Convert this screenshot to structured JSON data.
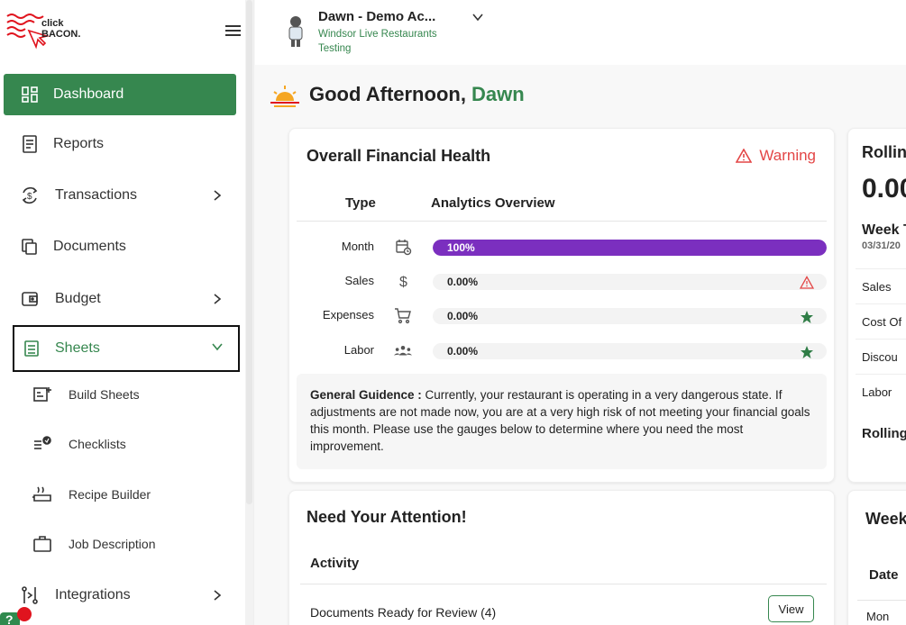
{
  "brand": {
    "logo_text_1": "click",
    "logo_text_2": "BACON."
  },
  "sidebar": {
    "items": [
      {
        "label": "Dashboard",
        "icon": "dashboard-icon"
      },
      {
        "label": "Reports",
        "icon": "reports-icon"
      },
      {
        "label": "Transactions",
        "icon": "transactions-icon"
      },
      {
        "label": "Documents",
        "icon": "documents-icon"
      },
      {
        "label": "Budget",
        "icon": "budget-icon"
      },
      {
        "label": "Sheets",
        "icon": "sheets-icon"
      },
      {
        "label": "Integrations",
        "icon": "integrations-icon"
      }
    ],
    "sub_items": [
      {
        "label": "Build Sheets",
        "icon": "build-sheets-icon"
      },
      {
        "label": "Checklists",
        "icon": "checklists-icon"
      },
      {
        "label": "Recipe Builder",
        "icon": "recipe-builder-icon"
      },
      {
        "label": "Job Description",
        "icon": "job-description-icon"
      }
    ],
    "help_badge": "?"
  },
  "account": {
    "name": "Dawn - Demo Ac...",
    "subtitle": "Windsor Live Restaurants Testing"
  },
  "greeting": {
    "prefix": "Good Afternoon, ",
    "name": "Dawn"
  },
  "financial_health": {
    "title": "Overall Financial Health",
    "status": "Warning",
    "col_type": "Type",
    "col_analytics": "Analytics Overview",
    "metrics": [
      {
        "label": "Month",
        "icon": "calendar-clock-icon",
        "value": "100%",
        "fill": 1.0,
        "status_icon": ""
      },
      {
        "label": "Sales",
        "icon": "dollar-icon",
        "value": "0.00%",
        "fill": 0,
        "status_icon": "warning-icon"
      },
      {
        "label": "Expenses",
        "icon": "cart-icon",
        "value": "0.00%",
        "fill": 0,
        "status_icon": "star-icon"
      },
      {
        "label": "Labor",
        "icon": "people-icon",
        "value": "0.00%",
        "fill": 0,
        "status_icon": "star-icon"
      }
    ],
    "guidance_label": "General Guidence : ",
    "guidance_text": "Currently, your restaurant is operating in a very dangerous state. If adjustments are not made now, you are at a very high risk of not meeting your financial goals this month. Please use the gauges below to determine where you need the most improvement."
  },
  "rolling": {
    "title": "Rollin",
    "big_value": "0.00",
    "week_title": "Week T",
    "week_date": "03/31/20",
    "rows": [
      "Sales",
      "Cost Of",
      "Discou",
      "Labor"
    ],
    "footer": "Rolling"
  },
  "attention": {
    "title": "Need Your Attention!",
    "activity_header": "Activity",
    "rows": [
      {
        "label": "Documents Ready for Review (4)",
        "button": "View"
      }
    ]
  },
  "week_card": {
    "title": "Week",
    "header": "Date",
    "row": "Mon"
  },
  "colors": {
    "brand_green": "#36874f",
    "progress_purple": "#7b2fbf",
    "warning_red": "#e34646"
  }
}
